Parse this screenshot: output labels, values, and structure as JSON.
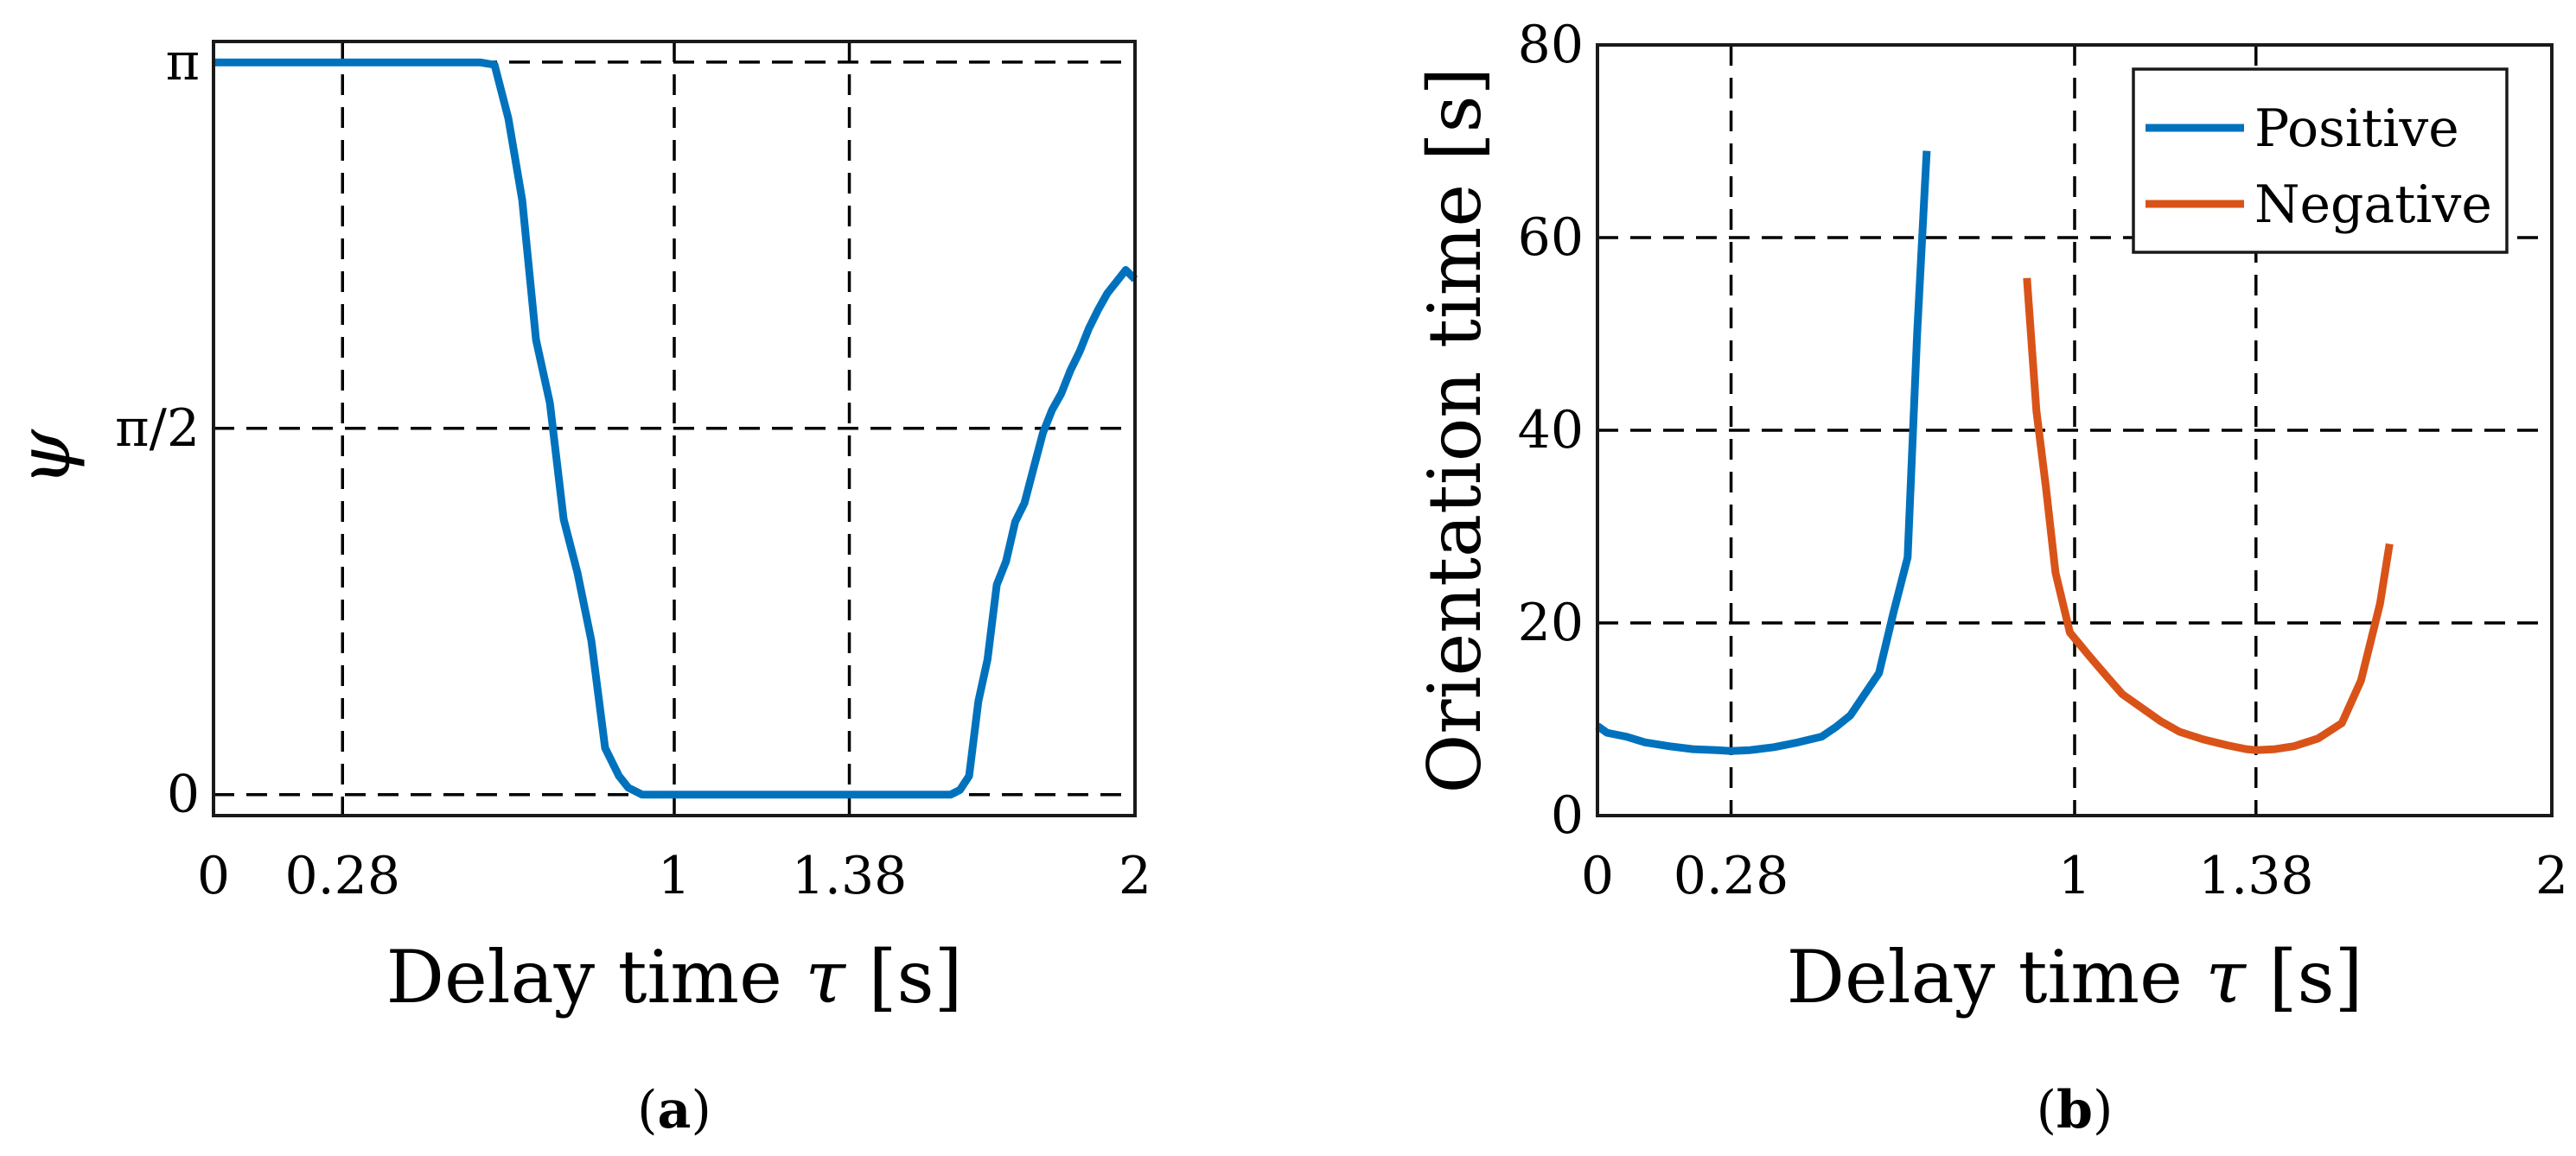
{
  "figure": {
    "caption_a": "a",
    "caption_b": "b"
  },
  "chart_data": [
    {
      "id": "a",
      "type": "line",
      "xlabel_prefix": "Delay time ",
      "xlabel_symbol": "τ",
      "xlabel_suffix": " [s]",
      "ylabel": "ψ",
      "xlim": [
        0,
        2
      ],
      "ylim": [
        -0.09,
        3.23
      ],
      "grid": true,
      "x_ticks": [
        {
          "value": 0,
          "label": "0"
        },
        {
          "value": 0.28,
          "label": "0.28"
        },
        {
          "value": 1,
          "label": "1"
        },
        {
          "value": 1.38,
          "label": "1.38"
        },
        {
          "value": 2,
          "label": "2"
        }
      ],
      "y_ticks": [
        {
          "value": 0,
          "label": "0"
        },
        {
          "value": 1.5708,
          "label": "π/2"
        },
        {
          "value": 3.1416,
          "label": "π"
        }
      ],
      "series": [
        {
          "name": "ψ",
          "color": "#0072BD",
          "x": [
            0,
            0.1,
            0.2,
            0.3,
            0.4,
            0.5,
            0.55,
            0.58,
            0.61,
            0.64,
            0.67,
            0.7,
            0.73,
            0.76,
            0.79,
            0.82,
            0.85,
            0.88,
            0.9,
            0.93,
            0.96,
            0.99,
            1.05,
            1.2,
            1.38,
            1.5,
            1.6,
            1.62,
            1.64,
            1.66,
            1.68,
            1.7,
            1.72,
            1.74,
            1.76,
            1.78,
            1.8,
            1.82,
            1.84,
            1.86,
            1.88,
            1.9,
            1.92,
            1.94,
            1.96,
            1.98,
            2.0
          ],
          "y": [
            3.14,
            3.14,
            3.14,
            3.14,
            3.14,
            3.14,
            3.14,
            3.14,
            3.13,
            2.9,
            2.55,
            1.95,
            1.68,
            1.18,
            0.95,
            0.66,
            0.2,
            0.08,
            0.03,
            0.0,
            0.0,
            0.0,
            0.0,
            0.0,
            0.0,
            0.0,
            0.0,
            0.02,
            0.08,
            0.4,
            0.58,
            0.9,
            1.0,
            1.17,
            1.25,
            1.4,
            1.55,
            1.65,
            1.72,
            1.82,
            1.9,
            2.0,
            2.08,
            2.15,
            2.2,
            2.25,
            2.21
          ]
        }
      ]
    },
    {
      "id": "b",
      "type": "line",
      "xlabel_prefix": "Delay time ",
      "xlabel_symbol": "τ",
      "xlabel_suffix": " [s]",
      "ylabel": "Orientation time [s]",
      "xlim": [
        0,
        2
      ],
      "ylim": [
        0,
        80
      ],
      "grid": true,
      "legend_position": "top-right",
      "x_ticks": [
        {
          "value": 0,
          "label": "0"
        },
        {
          "value": 0.28,
          "label": "0.28"
        },
        {
          "value": 1,
          "label": "1"
        },
        {
          "value": 1.38,
          "label": "1.38"
        },
        {
          "value": 2,
          "label": "2"
        }
      ],
      "y_ticks": [
        {
          "value": 0,
          "label": "0"
        },
        {
          "value": 20,
          "label": "20"
        },
        {
          "value": 40,
          "label": "40"
        },
        {
          "value": 60,
          "label": "60"
        },
        {
          "value": 80,
          "label": "80"
        }
      ],
      "series": [
        {
          "name": "Positive",
          "color": "#0072BD",
          "x": [
            0,
            0.02,
            0.06,
            0.1,
            0.15,
            0.2,
            0.25,
            0.28,
            0.32,
            0.37,
            0.42,
            0.47,
            0.5,
            0.53,
            0.56,
            0.59,
            0.62,
            0.65,
            0.67,
            0.69
          ],
          "y": [
            9.3,
            8.6,
            8.2,
            7.6,
            7.2,
            6.9,
            6.8,
            6.7,
            6.8,
            7.1,
            7.6,
            8.2,
            9.2,
            10.4,
            12.6,
            14.8,
            21.0,
            26.8,
            50.0,
            69.0
          ]
        },
        {
          "name": "Negative",
          "color": "#D95319",
          "x": [
            0.9,
            0.92,
            0.94,
            0.96,
            0.99,
            1.03,
            1.07,
            1.1,
            1.14,
            1.18,
            1.22,
            1.27,
            1.32,
            1.36,
            1.38,
            1.42,
            1.46,
            1.51,
            1.56,
            1.6,
            1.64,
            1.66
          ],
          "y": [
            55.8,
            42.0,
            34.0,
            25.2,
            19.0,
            16.6,
            14.3,
            12.6,
            11.2,
            9.8,
            8.7,
            7.9,
            7.3,
            6.9,
            6.8,
            6.9,
            7.2,
            8.0,
            9.6,
            14.0,
            22.0,
            28.2
          ]
        }
      ]
    }
  ]
}
